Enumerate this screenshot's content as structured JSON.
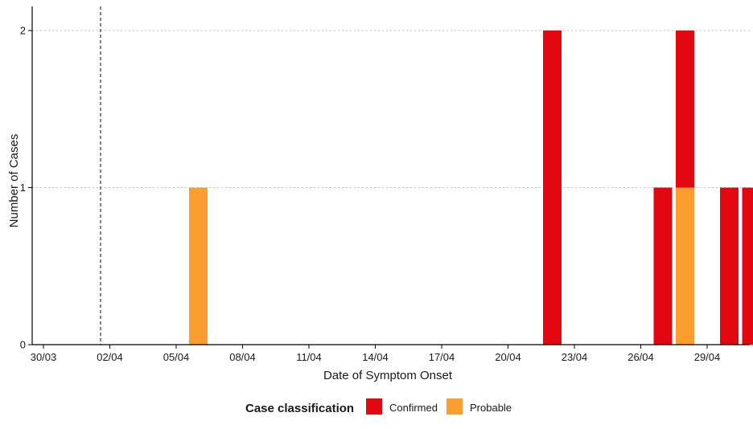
{
  "chart_data": {
    "type": "bar",
    "stacked": true,
    "xlabel": "Date of Symptom Onset",
    "ylabel": "Number of Cases",
    "x_ticks": [
      "30/03",
      "02/04",
      "05/04",
      "08/04",
      "11/04",
      "14/04",
      "17/04",
      "20/04",
      "23/04",
      "26/04",
      "29/04"
    ],
    "y_ticks": [
      0,
      1,
      2
    ],
    "ylim": [
      0,
      2.17
    ],
    "xlim": [
      "29/03",
      "01/05"
    ],
    "grid": "horizontal dotted",
    "reference_line_date": "01/04",
    "series": [
      {
        "name": "Confirmed",
        "color": "#e3080f",
        "points": [
          {
            "date": "22/04",
            "value": 2
          },
          {
            "date": "27/04",
            "value": 1
          },
          {
            "date": "28/04",
            "value": 1
          },
          {
            "date": "30/04",
            "value": 1
          },
          {
            "date": "01/05",
            "value": 1
          }
        ]
      },
      {
        "name": "Probable",
        "color": "#fb9d2f",
        "points": [
          {
            "date": "06/04",
            "value": 1
          },
          {
            "date": "28/04",
            "value": 1
          }
        ]
      }
    ],
    "legend": {
      "title": "Case classification",
      "placement": "bottom"
    }
  }
}
